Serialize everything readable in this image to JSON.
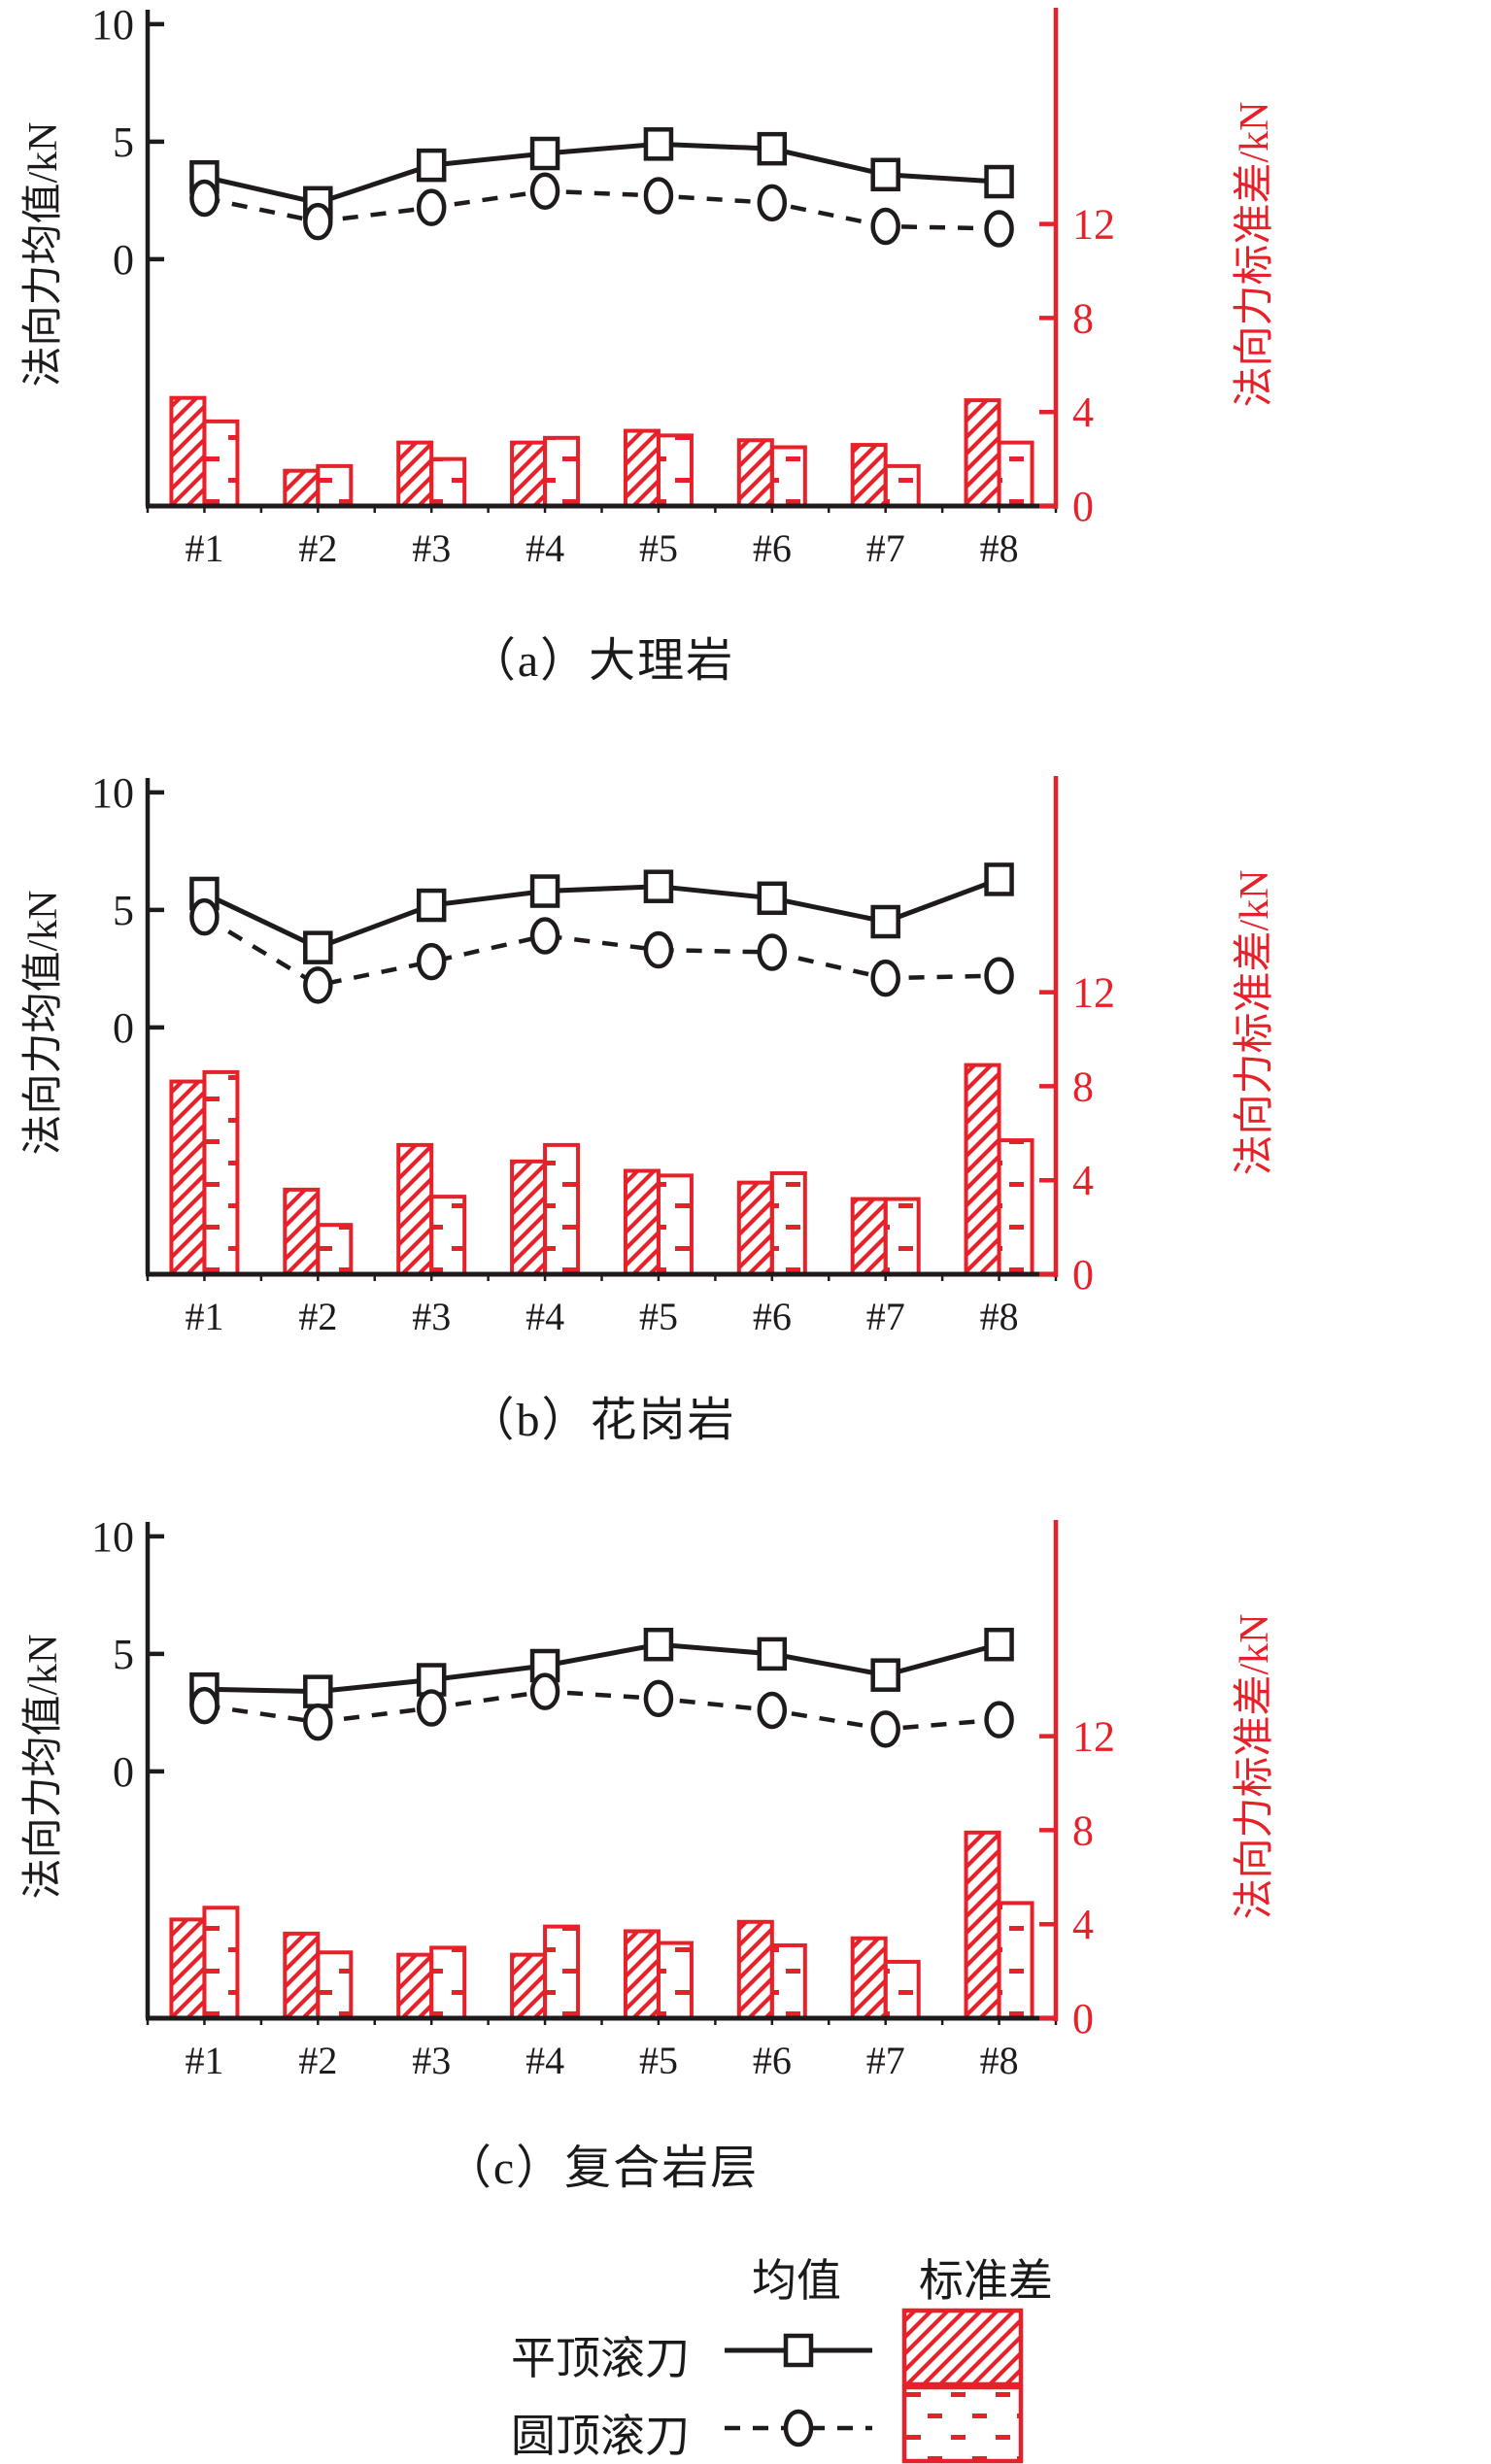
{
  "figure": {
    "background": "#ffffff",
    "ink_color": "#1f1b1c",
    "accent_red": "#e62129"
  },
  "axes_common": {
    "left_label": "法向力均值/kN",
    "right_label": "法向力标准差/kN",
    "left_ticks": [
      10,
      5,
      0
    ],
    "right_ticks": [
      12,
      8,
      4,
      0
    ],
    "x_categories": [
      "#1",
      "#2",
      "#3",
      "#4",
      "#5",
      "#6",
      "#7",
      "#8"
    ]
  },
  "legend": {
    "col_headers": [
      "均值",
      "标准差"
    ],
    "rows": [
      {
        "label": "平顶滚刀",
        "marker": "square",
        "line": "solid",
        "fill": "hatch"
      },
      {
        "label": "圆顶滚刀",
        "marker": "circle",
        "line": "dashed",
        "fill": "dash"
      }
    ]
  },
  "chart_data": [
    {
      "id": "a",
      "type": "line+bar",
      "title": "（a）大理岩",
      "categories": [
        "#1",
        "#2",
        "#3",
        "#4",
        "#5",
        "#6",
        "#7",
        "#8"
      ],
      "left_axis": {
        "label": "法向力均值/kN",
        "ticks": [
          10,
          5,
          0
        ],
        "shown_range": [
          0,
          10
        ]
      },
      "right_axis": {
        "label": "法向力标准差/kN",
        "ticks": [
          12,
          8,
          4,
          0
        ],
        "shown_range": [
          0,
          12
        ]
      },
      "grid": false,
      "series": [
        {
          "name": "平顶滚刀 均值",
          "type": "line",
          "axis": "left",
          "marker": "square",
          "line": "solid",
          "values": [
            3.5,
            2.4,
            4.0,
            4.5,
            4.9,
            4.7,
            3.6,
            3.3
          ]
        },
        {
          "name": "圆顶滚刀 均值",
          "type": "line",
          "axis": "left",
          "marker": "circle",
          "line": "dashed",
          "values": [
            2.6,
            1.6,
            2.2,
            2.9,
            2.7,
            2.4,
            1.4,
            1.3
          ]
        },
        {
          "name": "平顶滚刀 标准差",
          "type": "bar",
          "axis": "right",
          "fill": "hatch",
          "values": [
            4.6,
            1.5,
            2.7,
            2.7,
            3.2,
            2.8,
            2.6,
            4.5
          ]
        },
        {
          "name": "圆顶滚刀 标准差",
          "type": "bar",
          "axis": "right",
          "fill": "dash",
          "values": [
            3.6,
            1.7,
            2.0,
            2.9,
            3.0,
            2.5,
            1.7,
            2.7
          ]
        }
      ]
    },
    {
      "id": "b",
      "type": "line+bar",
      "title": "（b）花岗岩",
      "categories": [
        "#1",
        "#2",
        "#3",
        "#4",
        "#5",
        "#6",
        "#7",
        "#8"
      ],
      "left_axis": {
        "label": "法向力均值/kN",
        "ticks": [
          10,
          5,
          0
        ],
        "shown_range": [
          0,
          10
        ]
      },
      "right_axis": {
        "label": "法向力标准差/kN",
        "ticks": [
          12,
          8,
          4,
          0
        ],
        "shown_range": [
          0,
          12
        ]
      },
      "grid": false,
      "series": [
        {
          "name": "平顶滚刀 均值",
          "type": "line",
          "axis": "left",
          "marker": "square",
          "line": "solid",
          "values": [
            5.7,
            3.4,
            5.2,
            5.8,
            6.0,
            5.5,
            4.5,
            6.3
          ]
        },
        {
          "name": "圆顶滚刀 均值",
          "type": "line",
          "axis": "left",
          "marker": "circle",
          "line": "dashed",
          "values": [
            4.7,
            1.8,
            2.8,
            3.9,
            3.3,
            3.2,
            2.1,
            2.2
          ]
        },
        {
          "name": "平顶滚刀 标准差",
          "type": "bar",
          "axis": "right",
          "fill": "hatch",
          "values": [
            8.2,
            3.6,
            5.5,
            4.8,
            4.4,
            3.9,
            3.2,
            8.9
          ]
        },
        {
          "name": "圆顶滚刀 标准差",
          "type": "bar",
          "axis": "right",
          "fill": "dash",
          "values": [
            8.6,
            2.1,
            3.3,
            5.5,
            4.2,
            4.3,
            3.2,
            5.7
          ]
        }
      ]
    },
    {
      "id": "c",
      "type": "line+bar",
      "title": "（c）复合岩层",
      "categories": [
        "#1",
        "#2",
        "#3",
        "#4",
        "#5",
        "#6",
        "#7",
        "#8"
      ],
      "left_axis": {
        "label": "法向力均值/kN",
        "ticks": [
          10,
          5,
          0
        ],
        "shown_range": [
          0,
          10
        ]
      },
      "right_axis": {
        "label": "法向力标准差/kN",
        "ticks": [
          12,
          8,
          4,
          0
        ],
        "shown_range": [
          0,
          12
        ]
      },
      "grid": false,
      "series": [
        {
          "name": "平顶滚刀 均值",
          "type": "line",
          "axis": "left",
          "marker": "square",
          "line": "solid",
          "values": [
            3.5,
            3.4,
            3.9,
            4.5,
            5.4,
            5.0,
            4.1,
            5.4
          ]
        },
        {
          "name": "圆顶滚刀 均值",
          "type": "line",
          "axis": "left",
          "marker": "circle",
          "line": "dashed",
          "values": [
            2.8,
            2.1,
            2.7,
            3.4,
            3.1,
            2.6,
            1.8,
            2.2
          ]
        },
        {
          "name": "平顶滚刀 标准差",
          "type": "bar",
          "axis": "right",
          "fill": "hatch",
          "values": [
            4.2,
            3.6,
            2.7,
            2.7,
            3.7,
            4.1,
            3.4,
            7.9
          ]
        },
        {
          "name": "圆顶滚刀 标准差",
          "type": "bar",
          "axis": "right",
          "fill": "dash",
          "values": [
            4.7,
            2.8,
            3.0,
            3.9,
            3.2,
            3.1,
            2.4,
            4.9
          ]
        }
      ]
    }
  ]
}
